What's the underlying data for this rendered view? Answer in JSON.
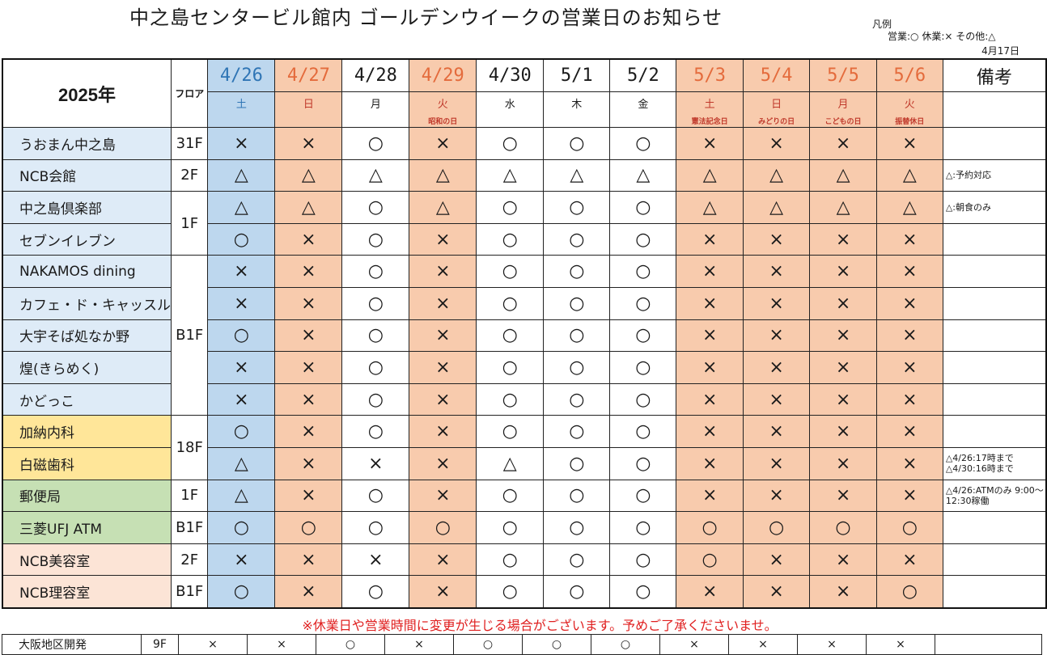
{
  "title": "中之島センタービル館内  ゴールデンウイークの営業日のお知らせ",
  "legend": {
    "heading": "凡例",
    "text": "営業:○ 休業:× その他:△"
  },
  "updated": "4月17日",
  "header": {
    "year": "2025年",
    "floor_label": "フロア",
    "remarks_label": "備考",
    "dates": [
      "4/26",
      "4/27",
      "4/28",
      "4/29",
      "4/30",
      "5/1",
      "5/2",
      "5/3",
      "5/4",
      "5/5",
      "5/6"
    ],
    "weekdays": [
      "土",
      "日",
      "月",
      "火",
      "水",
      "木",
      "金",
      "土",
      "日",
      "月",
      "火"
    ],
    "holidays": [
      "",
      "",
      "",
      "昭和の日",
      "",
      "",
      "",
      "憲法記念日",
      "みどりの日",
      "こどもの日",
      "振替休日"
    ]
  },
  "rows": [
    {
      "name": "うおまん中之島",
      "marks": [
        "×",
        "×",
        "○",
        "×",
        "○",
        "○",
        "○",
        "×",
        "×",
        "×",
        "×"
      ],
      "note": ""
    },
    {
      "name": "NCB会館",
      "marks": [
        "△",
        "△",
        "△",
        "△",
        "△",
        "△",
        "△",
        "△",
        "△",
        "△",
        "△"
      ],
      "note": "△:予約対応"
    },
    {
      "name": "中之島倶楽部",
      "marks": [
        "△",
        "△",
        "○",
        "△",
        "○",
        "○",
        "○",
        "△",
        "△",
        "△",
        "△"
      ],
      "note": "△:朝食のみ"
    },
    {
      "name": "セブンイレブン",
      "marks": [
        "○",
        "×",
        "○",
        "×",
        "○",
        "○",
        "○",
        "×",
        "×",
        "×",
        "×"
      ],
      "note": ""
    },
    {
      "name": "NAKAMOS dining",
      "marks": [
        "×",
        "×",
        "○",
        "×",
        "○",
        "○",
        "○",
        "×",
        "×",
        "×",
        "×"
      ],
      "note": ""
    },
    {
      "name": "カフェ・ド・キャッスル",
      "marks": [
        "×",
        "×",
        "○",
        "×",
        "○",
        "○",
        "○",
        "×",
        "×",
        "×",
        "×"
      ],
      "note": ""
    },
    {
      "name": "大宇そば処なか野",
      "marks": [
        "○",
        "×",
        "○",
        "×",
        "○",
        "○",
        "○",
        "×",
        "×",
        "×",
        "×"
      ],
      "note": ""
    },
    {
      "name": "煌(きらめく)",
      "marks": [
        "×",
        "×",
        "○",
        "×",
        "○",
        "○",
        "○",
        "×",
        "×",
        "×",
        "×"
      ],
      "note": ""
    },
    {
      "name": "かどっこ",
      "marks": [
        "×",
        "×",
        "○",
        "×",
        "○",
        "○",
        "○",
        "×",
        "×",
        "×",
        "×"
      ],
      "note": ""
    },
    {
      "name": "加納内科",
      "marks": [
        "○",
        "×",
        "○",
        "×",
        "○",
        "○",
        "○",
        "×",
        "×",
        "×",
        "×"
      ],
      "note": ""
    },
    {
      "name": "白磁歯科",
      "marks": [
        "△",
        "×",
        "×",
        "×",
        "△",
        "○",
        "○",
        "×",
        "×",
        "×",
        "×"
      ],
      "note": "△4/26:17時まで\n△4/30:16時まで"
    },
    {
      "name": "郵便局",
      "marks": [
        "△",
        "×",
        "○",
        "×",
        "○",
        "○",
        "○",
        "×",
        "×",
        "×",
        "×"
      ],
      "note": "△4/26:ATMのみ\n9:00～12:30稼働"
    },
    {
      "name": "三菱UFJ  ATM",
      "marks": [
        "○",
        "○",
        "○",
        "○",
        "○",
        "○",
        "○",
        "○",
        "○",
        "○",
        "○"
      ],
      "note": ""
    },
    {
      "name": "NCB美容室",
      "marks": [
        "×",
        "×",
        "×",
        "×",
        "○",
        "○",
        "○",
        "○",
        "×",
        "×",
        "×"
      ],
      "note": ""
    },
    {
      "name": "NCB理容室",
      "marks": [
        "○",
        "×",
        "○",
        "×",
        "○",
        "○",
        "○",
        "×",
        "×",
        "×",
        "○"
      ],
      "note": ""
    }
  ],
  "floors": {
    "f31": "31F",
    "f2": "2F",
    "f1": "1F",
    "fb1": "B1F",
    "f18": "18F",
    "f1b": "1F",
    "fb1b": "B1F",
    "f2b": "2F",
    "fb1c": "B1F"
  },
  "warning": "※休業日や営業時間に変更が生じる場合がございます。予めご了承くださいませ。",
  "extra_row": {
    "name": "大阪地区開発",
    "floor": "9F",
    "marks": [
      "×",
      "×",
      "○",
      "×",
      "○",
      "○",
      "○",
      "×",
      "×",
      "×",
      "×"
    ]
  },
  "colors": {
    "saturday_blue": "#bdd7ee",
    "holiday_orange": "#f8cbad",
    "group_light_blue": "#deebf7",
    "group_yellow": "#ffe699",
    "group_green": "#c6e0b4",
    "group_peach": "#fce4d6",
    "warning_red": "#e02020"
  }
}
